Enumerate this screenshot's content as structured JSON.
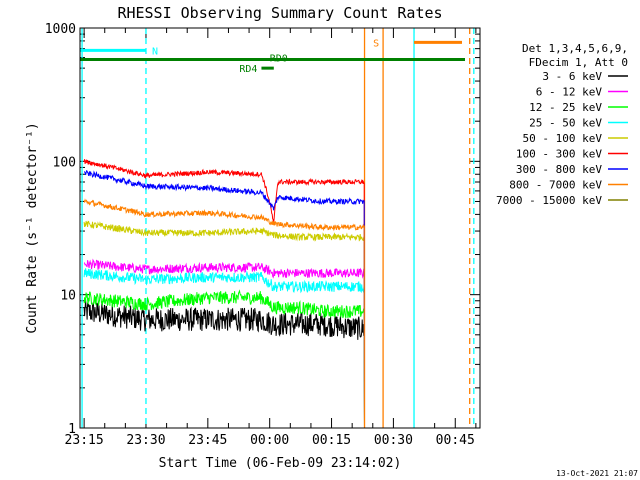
{
  "chart_data": {
    "type": "line",
    "title": "RHESSI Observing Summary Count Rates",
    "xlabel": "Start Time (06-Feb-09 23:14:02)",
    "ylabel": "Count Rate (s⁻¹ detector⁻¹)",
    "yscale": "log",
    "ylim": [
      1,
      1000
    ],
    "xlim_minutes": [
      -1,
      96
    ],
    "xtick_labels": [
      "23:15",
      "23:30",
      "23:45",
      "00:00",
      "00:15",
      "00:30",
      "00:45"
    ],
    "xtick_minutes": [
      0,
      15,
      30,
      45,
      60,
      75,
      90
    ],
    "ytick_labels": [
      "1",
      "10",
      "100",
      "1000"
    ],
    "ytick_values": [
      1,
      10,
      100,
      1000
    ],
    "legend_header": [
      "Det 1,3,4,5,6,9,",
      "FDecim 1, Att 0"
    ],
    "legend_position": "right",
    "timestamp": "13-Oct-2021 21:07",
    "series": [
      {
        "name": "3 - 6 keV",
        "color": "#000000",
        "values": [
          [
            0,
            7.5
          ],
          [
            15,
            6.5
          ],
          [
            30,
            6.5
          ],
          [
            43,
            6.5
          ],
          [
            46,
            6.0
          ],
          [
            52,
            6.0
          ],
          [
            58,
            6.0
          ],
          [
            68,
            5.5
          ]
        ]
      },
      {
        "name": "6 - 12 keV",
        "color": "#ff00ff",
        "values": [
          [
            0,
            17
          ],
          [
            15,
            15.5
          ],
          [
            30,
            16
          ],
          [
            43,
            16
          ],
          [
            46,
            14.5
          ],
          [
            52,
            14.5
          ],
          [
            58,
            14.5
          ],
          [
            68,
            14.5
          ]
        ]
      },
      {
        "name": "12 - 25 keV",
        "color": "#00ff00",
        "values": [
          [
            0,
            9.5
          ],
          [
            15,
            8.5
          ],
          [
            30,
            9.5
          ],
          [
            43,
            9.5
          ],
          [
            46,
            8.0
          ],
          [
            52,
            8.0
          ],
          [
            58,
            7.5
          ],
          [
            68,
            7.5
          ]
        ]
      },
      {
        "name": "25 - 50 keV",
        "color": "#00ffff",
        "values": [
          [
            0,
            14.5
          ],
          [
            15,
            13
          ],
          [
            30,
            13.5
          ],
          [
            43,
            13.5
          ],
          [
            46,
            11.5
          ],
          [
            52,
            11.5
          ],
          [
            58,
            11.5
          ],
          [
            68,
            11.5
          ]
        ]
      },
      {
        "name": "50 - 100 keV",
        "color": "#cccc00",
        "values": [
          [
            0,
            34
          ],
          [
            15,
            29
          ],
          [
            30,
            29
          ],
          [
            43,
            30
          ],
          [
            46,
            28
          ],
          [
            52,
            27
          ],
          [
            58,
            27
          ],
          [
            68,
            27
          ]
        ]
      },
      {
        "name": "100 - 300 keV",
        "color": "#ff0000",
        "values": [
          [
            0,
            100
          ],
          [
            15,
            78
          ],
          [
            30,
            83
          ],
          [
            43,
            80
          ],
          [
            46,
            33
          ],
          [
            47,
            70
          ],
          [
            58,
            70
          ],
          [
            68,
            70
          ]
        ]
      },
      {
        "name": "300 - 800 keV",
        "color": "#0000ff",
        "values": [
          [
            0,
            82
          ],
          [
            15,
            65
          ],
          [
            30,
            63
          ],
          [
            43,
            58
          ],
          [
            46,
            44
          ],
          [
            47,
            54
          ],
          [
            58,
            50
          ],
          [
            68,
            50
          ]
        ]
      },
      {
        "name": "800 - 7000 keV",
        "color": "#ff8000",
        "values": [
          [
            0,
            50
          ],
          [
            15,
            40
          ],
          [
            30,
            41
          ],
          [
            43,
            38
          ],
          [
            46,
            34
          ],
          [
            52,
            33
          ],
          [
            58,
            32
          ],
          [
            68,
            32
          ]
        ]
      },
      {
        "name": "7000 - 15000 keV",
        "color": "#808000",
        "values": []
      }
    ],
    "annotations": {
      "night": {
        "label": "N",
        "color": "#00ffff",
        "level": 680,
        "end": 15
      },
      "saa": {
        "label": "S",
        "color": "#ff8000",
        "level": 780,
        "start": 73,
        "bar_start": 80
      },
      "rd0": {
        "label": "RD0",
        "color": "#008000",
        "level": 580
      },
      "rd4": {
        "label": "RD4",
        "color": "#008000",
        "level": 500,
        "start": 43,
        "end": 46
      },
      "vertical_lines": [
        {
          "minute": -0.5,
          "color": "#00ffff",
          "style": "solid"
        },
        {
          "minute": 15,
          "color": "#00ffff",
          "style": "dashed"
        },
        {
          "minute": 80,
          "color": "#00ffff",
          "style": "solid"
        },
        {
          "minute": 94.5,
          "color": "#00ffff",
          "style": "dashed"
        },
        {
          "minute": 68,
          "color": "#ff8000",
          "style": "solid"
        },
        {
          "minute": 72.5,
          "color": "#ff8000",
          "style": "solid"
        },
        {
          "minute": 93.5,
          "color": "#ff8000",
          "style": "dashed"
        }
      ]
    }
  }
}
